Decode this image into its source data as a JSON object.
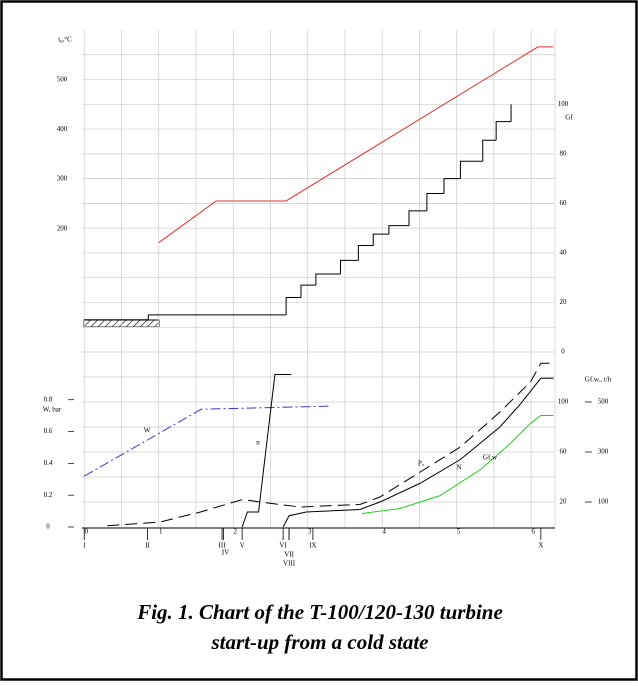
{
  "chart_data": [
    {
      "type": "line",
      "xlim": [
        -0.03,
        6.32
      ],
      "ylim": [
        -48,
        600
      ],
      "yticks": [
        200,
        300,
        400,
        500
      ],
      "ylabel": "t₀,°C",
      "y2lim": [
        0,
        130
      ],
      "y2ticks": [
        0,
        20,
        40,
        60,
        80,
        100
      ],
      "y2label": "Gf",
      "grid": true,
      "series": [
        {
          "color": "#e03030",
          "linestyle": "solid",
          "x": [
            1.0,
            1.77,
            2.71,
            6.09,
            6.3
          ],
          "values": [
            172,
            256,
            256,
            566,
            566
          ]
        },
        {
          "color": "#000000",
          "linestyle": "step",
          "axis": "y2",
          "x": [
            0,
            0.86,
            2.71,
            2.91,
            3.11,
            3.44,
            3.68,
            3.88,
            4.09,
            4.36,
            4.6,
            4.83,
            5.05,
            5.35,
            5.53,
            5.73
          ],
          "values": [
            13,
            15,
            22,
            27,
            31.5,
            37,
            43,
            47.6,
            51,
            57,
            64,
            70,
            77,
            85.5,
            93,
            100
          ]
        }
      ]
    },
    {
      "type": "line",
      "xlim": [
        -0.03,
        6.32
      ],
      "xticks": [
        0,
        1,
        2,
        3,
        4,
        5,
        6
      ],
      "ylim": [
        0,
        1.1
      ],
      "yticks": [
        0,
        0.2,
        0.4,
        0.6,
        0.8
      ],
      "ylabel": "W, bar",
      "y2lim": [
        0,
        140
      ],
      "y2ticks": [
        20,
        60,
        100
      ],
      "y3lim": [
        0,
        700
      ],
      "y3ticks": [
        100,
        300,
        500
      ],
      "y3label": "Gf.w., t/h",
      "grid": true,
      "events": [
        {
          "value": 0,
          "label": "I"
        },
        {
          "value": 0.85,
          "label": "II"
        },
        {
          "value": 1.85,
          "label": "III"
        },
        {
          "value": 1.87,
          "label": "IV"
        },
        {
          "value": 2.12,
          "label": "V"
        },
        {
          "value": 2.67,
          "label": "VI"
        },
        {
          "value": 2.75,
          "label": "VII"
        },
        {
          "value": 2.75,
          "label": "VIII"
        },
        {
          "value": 3.07,
          "label": "IX"
        },
        {
          "value": 6.13,
          "label": "X"
        }
      ],
      "series": [
        {
          "name": "W",
          "color": "#3a3ac8",
          "linestyle": "dashdot",
          "x": [
            0,
            1.57,
            3.3
          ],
          "values": [
            0.32,
            0.74,
            0.76
          ]
        },
        {
          "name": "n",
          "color": "#000000",
          "linestyle": "solid",
          "axis": "y2",
          "x": [
            2.12,
            2.19,
            2.34,
            2.56,
            2.78
          ],
          "values": [
            0,
            12,
            12,
            122,
            122
          ]
        },
        {
          "name": "Pₒ",
          "color": "#000000",
          "linestyle": "dashed",
          "axis": "y2",
          "x": [
            0.31,
            1.02,
            1.56,
            2.01,
            2.13,
            2.36,
            2.9,
            3.7,
            3.97,
            4.51,
            5.05,
            5.58,
            5.99,
            6.13,
            6.3
          ],
          "values": [
            1,
            4,
            12,
            20,
            22,
            20,
            16,
            18,
            24,
            44,
            64,
            92,
            116,
            131,
            131
          ]
        },
        {
          "name": "N",
          "color": "#000000",
          "linestyle": "solid",
          "axis": "y2",
          "x": [
            2.67,
            2.75,
            2.98,
            3.7,
            3.97,
            4.51,
            5.05,
            5.58,
            5.85,
            6.13,
            6.3
          ],
          "values": [
            0,
            9,
            12,
            14,
            20,
            35,
            54,
            80,
            98,
            119,
            119
          ]
        },
        {
          "name": "Gf.w",
          "color": "#22cc22",
          "linestyle": "solid",
          "axis": "y3",
          "x": [
            3.73,
            4.24,
            4.78,
            5.32,
            5.72,
            5.99,
            6.13,
            6.3
          ],
          "values": [
            54,
            74,
            126,
            230,
            334,
            414,
            446,
            446
          ]
        }
      ]
    }
  ],
  "caption": [
    "Fig. 1. Chart of the T-100/120-130 turbine",
    "start-up from a cold state"
  ]
}
